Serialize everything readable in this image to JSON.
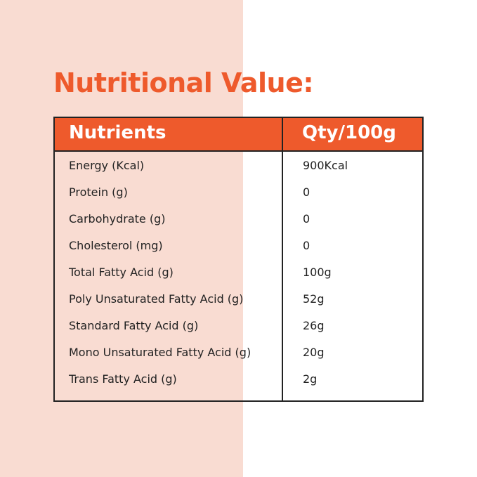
{
  "title": "Nutritional Value:",
  "table": {
    "header": [
      "Nutrients",
      "Qty/100g"
    ],
    "rows": [
      [
        "Energy (Kcal)",
        "900Kcal"
      ],
      [
        "Protein (g)",
        "0"
      ],
      [
        "Carbohydrate (g)",
        "0"
      ],
      [
        "Cholesterol (mg)",
        "0"
      ],
      [
        "Total Fatty Acid (g)",
        "100g"
      ],
      [
        "Poly Unsaturated Fatty Acid (g)",
        "52g"
      ],
      [
        "Standard Fatty Acid (g)",
        "26g"
      ],
      [
        "Mono Unsaturated Fatty Acid (g)",
        "20g"
      ],
      [
        "Trans Fatty Acid (g)",
        "2g"
      ]
    ]
  }
}
